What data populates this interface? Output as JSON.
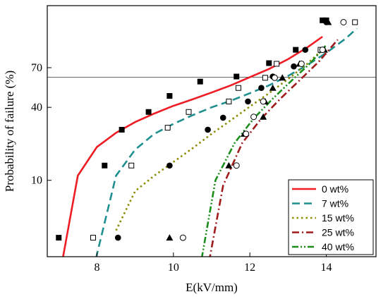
{
  "chart_data": {
    "type": "scatter",
    "xlabel": "E(kV/mm)",
    "ylabel": "Probability of failure (%)",
    "x_ticks": [
      8,
      10,
      12,
      14
    ],
    "y_ticks": [
      10,
      40,
      70
    ],
    "xlim": [
      6.7,
      15.3
    ],
    "ylim": [
      2,
      99
    ],
    "reference_line_y": 62.5,
    "grid": false,
    "legend_position": "bottom-right",
    "series": [
      {
        "name": "0 wt%",
        "color": "#ee1c24",
        "dash": "solid",
        "marker": "filled-square",
        "points": [
          [
            7.0,
            3
          ],
          [
            8.2,
            13.5
          ],
          [
            8.65,
            27
          ],
          [
            9.35,
            37
          ],
          [
            9.9,
            48
          ],
          [
            10.7,
            59
          ],
          [
            11.65,
            63
          ],
          [
            12.5,
            73.5
          ],
          [
            13.2,
            83
          ],
          [
            13.9,
            96.5
          ],
          [
            14.0,
            96.5
          ]
        ],
        "fit": [
          [
            7.05,
            1.5
          ],
          [
            7.5,
            11
          ],
          [
            8.0,
            19.5
          ],
          [
            8.5,
            25.5
          ],
          [
            9.0,
            31
          ],
          [
            9.5,
            36
          ],
          [
            10.0,
            41
          ],
          [
            10.5,
            45.5
          ],
          [
            11.0,
            50.5
          ],
          [
            11.5,
            56
          ],
          [
            12.0,
            62.5
          ],
          [
            12.5,
            69
          ],
          [
            13.0,
            76.5
          ],
          [
            13.5,
            84.5
          ],
          [
            13.9,
            90.5
          ]
        ]
      },
      {
        "name": "7 wt%",
        "color": "#1f8f8f",
        "dash": "dashed",
        "marker": "open-square",
        "points": [
          [
            7.9,
            3
          ],
          [
            8.9,
            13.5
          ],
          [
            9.85,
            28
          ],
          [
            10.4,
            37
          ],
          [
            11.45,
            44
          ],
          [
            11.7,
            54
          ],
          [
            12.4,
            62
          ],
          [
            12.7,
            73
          ],
          [
            13.85,
            83
          ],
          [
            14.75,
            96
          ]
        ],
        "fit": [
          [
            7.9,
            1.5
          ],
          [
            8.5,
            11
          ],
          [
            9.0,
            18.5
          ],
          [
            9.5,
            25
          ],
          [
            10.0,
            30
          ],
          [
            10.5,
            35
          ],
          [
            11.0,
            40
          ],
          [
            11.5,
            44.5
          ],
          [
            12.0,
            50
          ],
          [
            12.5,
            56
          ],
          [
            13.0,
            63.5
          ],
          [
            13.5,
            72
          ],
          [
            14.0,
            81
          ],
          [
            14.5,
            89.5
          ],
          [
            14.8,
            94
          ]
        ]
      },
      {
        "name": "15 wt%",
        "color": "#8b8b00",
        "dash": "dotted",
        "marker": "filled-circle",
        "points": [
          [
            8.55,
            3
          ],
          [
            9.9,
            13.5
          ],
          [
            10.9,
            27
          ],
          [
            11.3,
            33.5
          ],
          [
            11.95,
            44
          ],
          [
            12.3,
            54
          ],
          [
            12.6,
            63
          ],
          [
            13.15,
            71
          ],
          [
            13.45,
            83
          ],
          [
            14.0,
            96
          ]
        ],
        "fit": [
          [
            8.5,
            3.5
          ],
          [
            9.0,
            8
          ],
          [
            9.5,
            11
          ],
          [
            10.0,
            14.5
          ],
          [
            10.5,
            19
          ],
          [
            11.0,
            25
          ],
          [
            11.5,
            32
          ],
          [
            12.0,
            40.5
          ],
          [
            12.5,
            50
          ],
          [
            13.0,
            61
          ],
          [
            13.5,
            73
          ],
          [
            13.9,
            83
          ]
        ]
      },
      {
        "name": "25 wt%",
        "color": "#a01c1c",
        "dash": "dash-dot",
        "marker": "filled-triangle",
        "points": [
          [
            9.9,
            3
          ],
          [
            11.45,
            13.5
          ],
          [
            11.85,
            25
          ],
          [
            12.35,
            34
          ],
          [
            12.4,
            44
          ],
          [
            12.6,
            54
          ],
          [
            12.85,
            62
          ],
          [
            13.3,
            73
          ],
          [
            13.95,
            83
          ],
          [
            14.05,
            96
          ]
        ],
        "fit": [
          [
            10.8,
            1
          ],
          [
            11.3,
            9
          ],
          [
            11.8,
            21
          ],
          [
            12.3,
            33
          ],
          [
            12.8,
            46
          ],
          [
            13.3,
            60
          ],
          [
            13.8,
            74.5
          ],
          [
            14.3,
            89
          ]
        ]
      },
      {
        "name": "40 wt%",
        "color": "#1b8e1b",
        "dash": "dash-dot-dot",
        "marker": "open-circle",
        "points": [
          [
            10.25,
            3
          ],
          [
            11.65,
            13.5
          ],
          [
            11.9,
            25
          ],
          [
            12.1,
            34
          ],
          [
            12.35,
            44
          ],
          [
            12.65,
            62
          ],
          [
            13.35,
            73
          ],
          [
            13.9,
            83
          ],
          [
            14.45,
            96
          ]
        ],
        "fit": [
          [
            10.6,
            1
          ],
          [
            11.1,
            10
          ],
          [
            11.6,
            21
          ],
          [
            12.1,
            33
          ],
          [
            12.6,
            46
          ],
          [
            13.1,
            60
          ],
          [
            13.6,
            74
          ],
          [
            14.0,
            86
          ]
        ]
      }
    ]
  }
}
